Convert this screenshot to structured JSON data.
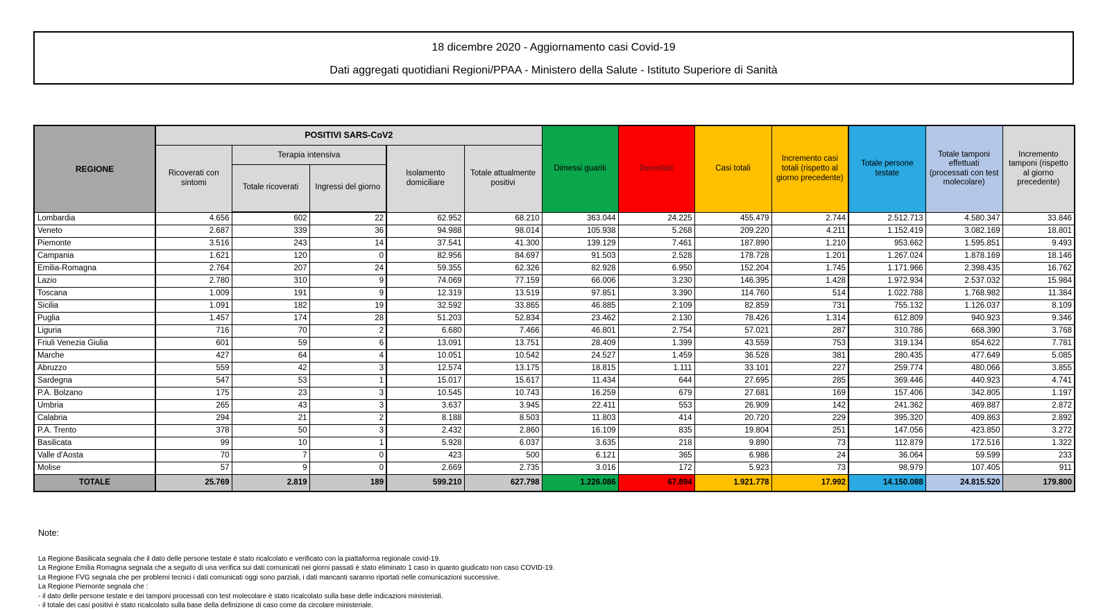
{
  "title": {
    "line1": "18 dicembre 2020 - Aggiornamento casi Covid-19",
    "line2": "Dati aggregati quotidiani Regioni/PPAA - Ministero della Salute - Istituto Superiore di Sanità"
  },
  "table": {
    "header": {
      "regione": "REGIONE",
      "positivi_group": "POSITIVI SARS-CoV2",
      "terapia_group": "Terapia intensiva",
      "ricoverati": "Ricoverati con sintomi",
      "ti_totale": "Totale ricoverati",
      "ti_ingressi": "Ingressi del giorno",
      "isolamento": "Isolamento domiciliare",
      "attualmente_positivi": "Totale attualmente positivi",
      "guariti": "Dimessi guariti",
      "deceduti": "Deceduti",
      "casi_totali": "Casi totali",
      "incremento_casi": "Incremento casi totali (rispetto al giorno precedente)",
      "persone_testate": "Totale persone testate",
      "tamponi": "Totale tamponi effettuati (processati con test molecolare)",
      "incremento_tamponi": "Incremento tamponi (rispetto al giorno precedente)"
    },
    "regions": [
      {
        "name": "Lombardia",
        "values": [
          "4.656",
          "602",
          "22",
          "62.952",
          "68.210",
          "363.044",
          "24.225",
          "455.479",
          "2.744",
          "2.512.713",
          "4.580.347",
          "33.846"
        ]
      },
      {
        "name": "Veneto",
        "values": [
          "2.687",
          "339",
          "36",
          "94.988",
          "98.014",
          "105.938",
          "5.268",
          "209.220",
          "4.211",
          "1.152.419",
          "3.082.169",
          "18.801"
        ]
      },
      {
        "name": "Piemonte",
        "values": [
          "3.516",
          "243",
          "14",
          "37.541",
          "41.300",
          "139.129",
          "7.461",
          "187.890",
          "1.210",
          "953.662",
          "1.595.851",
          "9.493"
        ]
      },
      {
        "name": "Campania",
        "values": [
          "1.621",
          "120",
          "0",
          "82.956",
          "84.697",
          "91.503",
          "2.528",
          "178.728",
          "1.201",
          "1.267.024",
          "1.878.169",
          "18.146"
        ]
      },
      {
        "name": "Emilia-Romagna",
        "values": [
          "2.764",
          "207",
          "24",
          "59.355",
          "62.326",
          "82.928",
          "6.950",
          "152.204",
          "1.745",
          "1.171.966",
          "2.398.435",
          "16.762"
        ]
      },
      {
        "name": "Lazio",
        "values": [
          "2.780",
          "310",
          "9",
          "74.069",
          "77.159",
          "66.006",
          "3.230",
          "146.395",
          "1.428",
          "1.972.934",
          "2.537.032",
          "15.984"
        ]
      },
      {
        "name": "Toscana",
        "values": [
          "1.009",
          "191",
          "9",
          "12.319",
          "13.519",
          "97.851",
          "3.390",
          "114.760",
          "514",
          "1.022.788",
          "1.768.982",
          "11.384"
        ]
      },
      {
        "name": "Sicilia",
        "values": [
          "1.091",
          "182",
          "19",
          "32.592",
          "33.865",
          "46.885",
          "2.109",
          "82.859",
          "731",
          "755.132",
          "1.126.037",
          "8.109"
        ]
      },
      {
        "name": "Puglia",
        "values": [
          "1.457",
          "174",
          "28",
          "51.203",
          "52.834",
          "23.462",
          "2.130",
          "78.426",
          "1.314",
          "612.809",
          "940.923",
          "9.346"
        ]
      },
      {
        "name": "Liguria",
        "values": [
          "716",
          "70",
          "2",
          "6.680",
          "7.466",
          "46.801",
          "2.754",
          "57.021",
          "287",
          "310.786",
          "668.390",
          "3.768"
        ]
      },
      {
        "name": "Friuli Venezia Giulia",
        "values": [
          "601",
          "59",
          "6",
          "13.091",
          "13.751",
          "28.409",
          "1.399",
          "43.559",
          "753",
          "319.134",
          "854.622",
          "7.781"
        ]
      },
      {
        "name": "Marche",
        "values": [
          "427",
          "64",
          "4",
          "10.051",
          "10.542",
          "24.527",
          "1.459",
          "36.528",
          "381",
          "280.435",
          "477.649",
          "5.085"
        ]
      },
      {
        "name": "Abruzzo",
        "values": [
          "559",
          "42",
          "3",
          "12.574",
          "13.175",
          "18.815",
          "1.111",
          "33.101",
          "227",
          "259.774",
          "480.066",
          "3.855"
        ]
      },
      {
        "name": "Sardegna",
        "values": [
          "547",
          "53",
          "1",
          "15.017",
          "15.617",
          "11.434",
          "644",
          "27.695",
          "285",
          "369.446",
          "440.923",
          "4.741"
        ]
      },
      {
        "name": "P.A. Bolzano",
        "values": [
          "175",
          "23",
          "3",
          "10.545",
          "10.743",
          "16.259",
          "679",
          "27.681",
          "169",
          "157.406",
          "342.805",
          "1.197"
        ]
      },
      {
        "name": "Umbria",
        "values": [
          "265",
          "43",
          "3",
          "3.637",
          "3.945",
          "22.411",
          "553",
          "26.909",
          "142",
          "241.362",
          "469.887",
          "2.872"
        ]
      },
      {
        "name": "Calabria",
        "values": [
          "294",
          "21",
          "2",
          "8.188",
          "8.503",
          "11.803",
          "414",
          "20.720",
          "229",
          "395.320",
          "409.863",
          "2.892"
        ]
      },
      {
        "name": "P.A. Trento",
        "values": [
          "378",
          "50",
          "3",
          "2.432",
          "2.860",
          "16.109",
          "835",
          "19.804",
          "251",
          "147.056",
          "423.850",
          "3.272"
        ]
      },
      {
        "name": "Basilicata",
        "values": [
          "99",
          "10",
          "1",
          "5.928",
          "6.037",
          "3.635",
          "218",
          "9.890",
          "73",
          "112.879",
          "172.516",
          "1.322"
        ]
      },
      {
        "name": "Valle d'Aosta",
        "values": [
          "70",
          "7",
          "0",
          "423",
          "500",
          "6.121",
          "365",
          "6.986",
          "24",
          "36.064",
          "59.599",
          "233"
        ]
      },
      {
        "name": "Molise",
        "values": [
          "57",
          "9",
          "0",
          "2.669",
          "2.735",
          "3.016",
          "172",
          "5.923",
          "73",
          "98.979",
          "107.405",
          "911"
        ]
      }
    ],
    "totale": {
      "label": "TOTALE",
      "values": [
        "25.769",
        "2.819",
        "189",
        "599.210",
        "627.798",
        "1.226.086",
        "67.894",
        "1.921.778",
        "17.992",
        "14.150.088",
        "24.815.520",
        "179.800"
      ]
    }
  },
  "notes": {
    "heading": "Note:",
    "lines": [
      "La Regione Basilicata segnala che il dato delle persone testate è stato ricalcolato e verificato con la piattaforma regionale covid-19.",
      "La Regione Emilia Romagna segnala che a seguito di una verifica sui dati comunicati nei giorni passati è stato eliminato 1 caso in quanto giudicato non caso COVID-19.",
      "La Regione FVG segnala che per problemi tecnici i dati comunicati oggi sono parziali, i dati mancanti saranno riportati nelle comunicazioni successive.",
      "La Regione Piemonte segnala che :",
      "- il dato delle persone testate e dei tamponi processati con test molecolare è stato ricalcolato sulla base delle indicazioni ministeriali.",
      "- il totale dei casi positivi è stato ricalcolato sulla base della definizione di caso come da circolare ministeriale."
    ]
  },
  "colors": {
    "green": "#0CA64D",
    "red": "#FC0000",
    "gold": "#FFC000",
    "cyan": "#2BA9E1",
    "lightblue": "#B4C7E7",
    "lightgray": "#D9D9D9",
    "midgray": "#A8A8A8",
    "totgray": "#C8C8C8",
    "lastgray": "#BFBFBF",
    "decedutiText": "#7A1113"
  }
}
